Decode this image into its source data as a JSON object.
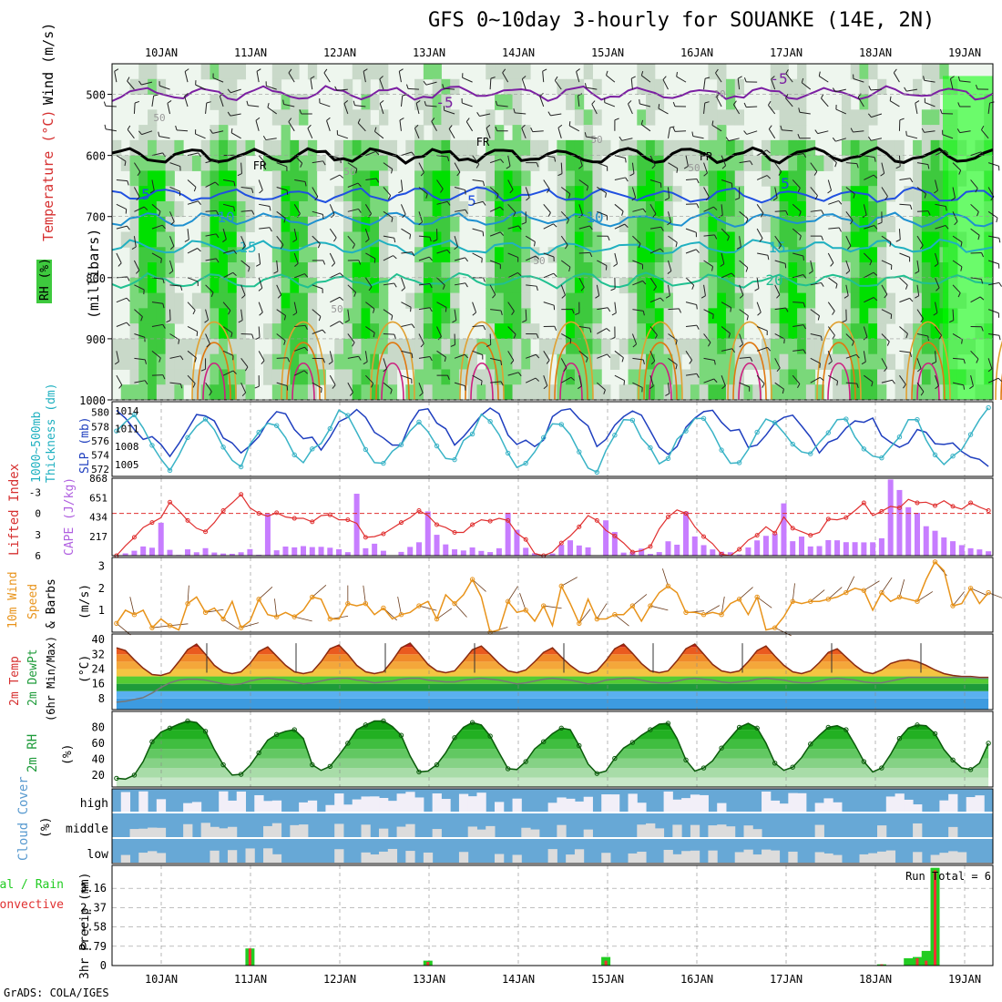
{
  "title": "GFS 0~10day 3-hourly for SOUANKE (14E, 2N)",
  "footer": "GrADS: COLA/IGES",
  "days": [
    "10JAN",
    "11JAN",
    "12JAN",
    "13JAN",
    "14JAN",
    "15JAN",
    "16JAN",
    "17JAN",
    "18JAN",
    "19JAN"
  ],
  "colors": {
    "green_fill": "#3ec93e",
    "bright_green": "#00ff00",
    "temp_line": "#7b1fa2",
    "fr_line": "#000000",
    "thick_line": "#1f3fbf",
    "slp_line": "#39b3c6",
    "cape_bar": "#c77dff",
    "li_line": "#e03030",
    "wind_line": "#e8931a",
    "cloud_blue": "#67a8d6",
    "rain_green": "#22cc22",
    "rain_red": "#ee3333"
  },
  "chart_data": [
    {
      "type": "heatmap",
      "panel": "upper-air cross section",
      "ylabel": "(millibars)",
      "labels": [
        "RH (%)",
        "Temperature (°C)",
        "Wind (m/s)"
      ],
      "y_ticks": [
        500,
        600,
        700,
        800,
        900,
        1000
      ],
      "ylim": [
        1000,
        450
      ],
      "contour_labels": [
        "-5",
        "-5",
        "FR",
        "FR",
        "FR",
        "5",
        "5",
        "5",
        "10",
        "10",
        "15",
        "15",
        "20",
        "50",
        "50",
        "50",
        "50",
        "50",
        "50",
        "10"
      ],
      "isotherms": [
        {
          "label": "-5",
          "level_mb": 498
        },
        {
          "label": "FR",
          "level_mb": 600
        },
        {
          "label": "5",
          "level_mb": 665
        },
        {
          "label": "10",
          "level_mb": 705
        },
        {
          "label": "15",
          "level_mb": 750
        },
        {
          "label": "20",
          "level_mb": 805
        }
      ]
    },
    {
      "type": "line",
      "panel": "thickness and sea level pressure",
      "labels": [
        "1000~500mb",
        "Thickness (dm)",
        "SLP (mb)"
      ],
      "left_ticks": [
        "572",
        "574",
        "576",
        "578",
        "580"
      ],
      "right_ticks": [
        "1005",
        "1008",
        "1011",
        "1014"
      ],
      "thickness_dm": [
        580.3,
        579.2,
        577.6,
        576.2,
        576.6,
        575.5,
        573.8,
        575.6,
        577.6,
        579.7,
        579.5,
        578.8,
        576.4,
        575.7,
        574.3,
        575.3,
        576.6,
        578.7,
        580.1,
        579.8,
        577.6,
        576.3,
        576.5,
        574.7,
        576.5,
        578.7,
        579.3,
        580.4,
        579.3,
        577.2,
        576.4,
        575.4,
        575.4,
        578.4,
        580.3,
        580.5,
        578.5,
        577.7,
        575.4,
        576.6,
        578.1,
        579.6,
        580.6,
        579.8,
        576.8,
        575.5,
        576.1,
        575.2,
        576.1,
        579.4,
        580.3,
        580.5,
        579.1,
        578.1,
        575.2,
        576.2,
        578.2,
        579.4,
        580.2,
        579.6,
        577.4,
        575.1,
        574.1,
        575.2,
        577.9,
        579.2,
        580.1,
        580.3,
        578.6,
        577.4,
        577.6,
        575.1,
        575.4,
        576.8,
        578.5,
        579.3,
        579.6,
        578.1,
        576.5,
        574.3,
        575.8,
        576.3,
        577.8,
        578.8,
        578.6,
        579.2,
        576.7,
        575.8,
        575.1,
        575.7,
        577.6,
        577.2,
        575.6,
        575.5,
        575.7,
        574.5,
        573.7,
        573.4,
        572.4
      ],
      "slp_mb": [
        1010.6,
        1012.1,
        1013.3,
        1011.1,
        1008.2,
        1005.9,
        1004.0,
        1006.5,
        1009.5,
        1011.4,
        1012.6,
        1010.8,
        1007.9,
        1005.7,
        1004.6,
        1008.4,
        1010.4,
        1011.9,
        1011.5,
        1009.5,
        1006.6,
        1005.3,
        1007.6,
        1008.5,
        1011.0,
        1014.1,
        1013.2,
        1010.4,
        1007.5,
        1005.3,
        1005.2,
        1007.2,
        1008.3,
        1010.6,
        1012.1,
        1010.5,
        1008.1,
        1006.0,
        1005.8,
        1009.0,
        1010.1,
        1013.4,
        1012.2,
        1010.0,
        1006.9,
        1004.5,
        1005.2,
        1007.1,
        1009.5,
        1011.8,
        1011.7,
        1010.0,
        1007.1,
        1004.4,
        1003.7,
        1007.3,
        1009.9,
        1012.5,
        1012.4,
        1009.4,
        1007.8,
        1005.1,
        1006.0,
        1009.2,
        1010.6,
        1012.7,
        1012.7,
        1010.4,
        1007.4,
        1005.2,
        1005.3,
        1007.5,
        1010.4,
        1012.6,
        1012.0,
        1010.3,
        1008.4,
        1007.1,
        1006.8,
        1008.7,
        1010.3,
        1012.5,
        1012.6,
        1009.6,
        1007.6,
        1006.4,
        1006.1,
        1007.9,
        1009.6,
        1012.5,
        1012.5,
        1009.1,
        1006.6,
        1005.0,
        1006.4,
        1007.5,
        1010.0,
        1012.5,
        1014.5
      ]
    },
    {
      "type": "bar",
      "panel": "CAPE and lifted index",
      "labels": [
        "Lifted Index",
        "CAPE (J/kg)"
      ],
      "left_ticks": [
        "-3",
        "0",
        "3",
        "6"
      ],
      "right_ticks": [
        "217",
        "434",
        "651",
        "868"
      ],
      "cape_jkg": [
        0,
        26,
        55,
        103,
        89,
        369,
        65,
        8,
        71,
        38,
        84,
        35,
        24,
        21,
        38,
        73,
        10,
        470,
        60,
        102,
        93,
        107,
        96,
        99,
        89,
        72,
        39,
        694,
        83,
        134,
        55,
        3,
        42,
        98,
        150,
        496,
        234,
        126,
        71,
        58,
        92,
        53,
        40,
        83,
        481,
        289,
        88,
        27,
        0,
        24,
        121,
        172,
        114,
        93,
        5,
        396,
        265,
        34,
        43,
        79,
        19,
        40,
        161,
        123,
        494,
        215,
        118,
        70,
        44,
        38,
        13,
        92,
        171,
        222,
        246,
        586,
        162,
        214,
        103,
        107,
        174,
        172,
        151,
        151,
        149,
        150,
        195,
        854,
        736,
        543,
        480,
        330,
        279,
        204,
        162,
        118,
        83,
        70,
        49
      ],
      "lifted_index": [
        6.0,
        4.6,
        3.4,
        2.0,
        1.3,
        0.6,
        -1.6,
        -0.4,
        1.0,
        2.1,
        2.6,
        1.3,
        -0.4,
        -1.5,
        -2.7,
        -0.8,
        0.0,
        0.4,
        -0.1,
        0.5,
        0.7,
        0.7,
        1.2,
        0.3,
        0.2,
        0.9,
        0.9,
        1.4,
        3.4,
        3.3,
        2.9,
        2.1,
        1.3,
        0.6,
        -0.4,
        0.3,
        1.6,
        2.0,
        2.7,
        2.7,
        1.6,
        0.9,
        1.1,
        0.7,
        1.0,
        2.8,
        3.7,
        5.7,
        6.0,
        5.5,
        4.2,
        3.2,
        1.9,
        0.3,
        1.0,
        2.4,
        3.2,
        4.2,
        5.5,
        5.3,
        4.7,
        2.2,
        0.5,
        -0.5,
        0.0,
        1.9,
        3.3,
        4.3,
        5.8,
        6.0,
        5.1,
        3.8,
        3.1,
        1.9,
        2.8,
        0.5,
        2.1,
        2.6,
        3.1,
        2.7,
        0.8,
        0.9,
        0.6,
        -0.4,
        -1.5,
        0.3,
        -0.3,
        -1.0,
        -0.8,
        -2.0,
        -1.5,
        -1.6,
        -1.1,
        -1.8,
        -1.0,
        -0.6,
        -1.5,
        -0.9,
        -0.4
      ]
    },
    {
      "type": "line",
      "panel": "10m wind",
      "labels": [
        "10m Wind",
        "Speed",
        "& Barbs",
        "(m/s)"
      ],
      "left_ticks": [
        "1",
        "2",
        "3"
      ],
      "speed_ms": [
        0.4,
        1.0,
        0.8,
        1.0,
        0.2,
        0.6,
        0.3,
        0.1,
        1.3,
        1.6,
        0.9,
        1.1,
        0.6,
        1.4,
        0.2,
        0.5,
        1.5,
        0.8,
        0.7,
        0.9,
        0.7,
        1.0,
        1.6,
        1.5,
        0.6,
        0.6,
        1.3,
        1.2,
        1.3,
        0.8,
        1.1,
        0.6,
        0.8,
        0.9,
        1.2,
        1.4,
        0.6,
        1.7,
        1.3,
        1.7,
        2.4,
        1.6,
        0.0,
        0.1,
        1.4,
        0.9,
        1.0,
        0.5,
        1.2,
        0.3,
        2.1,
        1.3,
        0.4,
        1.5,
        0.6,
        0.6,
        0.8,
        0.8,
        1.2,
        0.5,
        1.2,
        1.8,
        2.1,
        1.8,
        0.9,
        0.9,
        0.8,
        0.9,
        0.8,
        1.3,
        1.5,
        0.8,
        1.6,
        0.1,
        0.2,
        0.7,
        1.4,
        1.3,
        1.4,
        1.4,
        1.5,
        1.6,
        1.8,
        2.0,
        1.9,
        1.0,
        1.8,
        1.4,
        1.6,
        1.5,
        1.4,
        2.4,
        3.2,
        2.8,
        1.2,
        1.3,
        2.0,
        1.3,
        1.8
      ]
    },
    {
      "type": "area",
      "panel": "2m temperature and dew point",
      "labels": [
        "2m Temp",
        "2m DewPt",
        "(6hr Min/Max)",
        "(°C)"
      ],
      "left_ticks": [
        "8",
        "16",
        "24",
        "32",
        "40"
      ],
      "temp_c": [
        35.5,
        34.0,
        29.0,
        24.5,
        21.0,
        20.5,
        22.0,
        28.0,
        34.5,
        37.5,
        32.0,
        26.0,
        22.5,
        21.5,
        22.5,
        27.0,
        33.5,
        36.0,
        31.0,
        26.0,
        22.5,
        21.5,
        22.5,
        28.0,
        35.0,
        37.0,
        32.0,
        26.0,
        22.5,
        21.5,
        22.5,
        28.5,
        35.5,
        38.0,
        32.5,
        26.5,
        23.0,
        22.0,
        23.0,
        28.5,
        34.5,
        36.5,
        32.0,
        27.0,
        23.0,
        22.0,
        23.5,
        28.0,
        33.0,
        35.5,
        30.5,
        26.0,
        22.5,
        21.5,
        23.0,
        28.5,
        35.0,
        37.5,
        32.5,
        27.0,
        23.0,
        22.0,
        23.0,
        28.5,
        35.0,
        37.5,
        32.0,
        26.5,
        23.0,
        22.0,
        23.0,
        28.0,
        34.0,
        36.5,
        31.0,
        26.0,
        22.5,
        21.5,
        23.0,
        27.5,
        33.0,
        35.0,
        30.5,
        26.0,
        22.5,
        21.5,
        23.5,
        27.0,
        28.5,
        29.0,
        28.0,
        26.0,
        23.5,
        21.5,
        20.5,
        20.0,
        20.0,
        19.5,
        19.5
      ],
      "dewpt_c": [
        6.0,
        6.5,
        7.5,
        8.5,
        11.0,
        14.0,
        16.5,
        18.0,
        18.5,
        18.5,
        18.0,
        17.0,
        16.0,
        15.5,
        16.0,
        17.5,
        18.5,
        19.0,
        18.5,
        18.0,
        17.0,
        16.0,
        16.5,
        17.5,
        18.5,
        19.0,
        19.0,
        18.0,
        17.5,
        16.5,
        17.0,
        17.5,
        18.5,
        19.0,
        19.0,
        18.0,
        17.5,
        17.0,
        17.0,
        18.0,
        18.5,
        19.0,
        18.5,
        18.0,
        17.0,
        16.0,
        16.5,
        17.5,
        18.5,
        19.0,
        18.5,
        18.0,
        17.0,
        16.0,
        16.5,
        18.0,
        18.5,
        19.0,
        19.0,
        18.0,
        17.0,
        16.5,
        16.5,
        17.5,
        18.5,
        19.0,
        18.5,
        18.0,
        17.0,
        16.5,
        17.0,
        17.5,
        18.5,
        19.0,
        18.5,
        18.0,
        17.0,
        16.5,
        16.5,
        17.5,
        18.5,
        19.0,
        18.5,
        18.0,
        17.0,
        16.5,
        16.5,
        17.5,
        18.5,
        19.5,
        19.5,
        19.5,
        19.5,
        19.5,
        19.5,
        19.5,
        19.5,
        19.0,
        19.0
      ]
    },
    {
      "type": "area",
      "panel": "2m relative humidity",
      "labels": [
        "2m RH",
        "(%)"
      ],
      "left_ticks": [
        "20",
        "40",
        "60",
        "80"
      ],
      "rh_pct": [
        16,
        15,
        20,
        37,
        62,
        74,
        79,
        84,
        88,
        86,
        75,
        52,
        33,
        20,
        21,
        32,
        48,
        64,
        71,
        75,
        77,
        66,
        33,
        26,
        31,
        45,
        60,
        77,
        83,
        88,
        88,
        81,
        70,
        44,
        24,
        25,
        33,
        48,
        67,
        80,
        86,
        83,
        69,
        48,
        28,
        27,
        37,
        53,
        62,
        72,
        79,
        77,
        57,
        34,
        22,
        25,
        41,
        54,
        61,
        70,
        77,
        84,
        85,
        66,
        39,
        25,
        29,
        38,
        54,
        67,
        80,
        85,
        79,
        60,
        35,
        26,
        30,
        42,
        59,
        70,
        80,
        82,
        77,
        58,
        37,
        24,
        29,
        46,
        66,
        79,
        83,
        82,
        72,
        52,
        39,
        29,
        27,
        35,
        60
      ]
    },
    {
      "type": "table",
      "panel": "cloud cover",
      "labels": [
        "Cloud Cover",
        "(%)"
      ],
      "rows": [
        "high",
        "middle",
        "low"
      ]
    },
    {
      "type": "bar",
      "panel": "3hr precipitation",
      "labels": [
        "Total / Rain",
        "Convective",
        "3hr Precip (mm)"
      ],
      "left_ticks": [
        "0",
        "0.79",
        "1.58",
        "2.37",
        "3.16"
      ],
      "annotation": "Run Total = 6",
      "total_mm": [
        0,
        0,
        0,
        0,
        0,
        0,
        0,
        0,
        0,
        0,
        0,
        0,
        0,
        0,
        0,
        0.7,
        0,
        0,
        0,
        0,
        0,
        0,
        0,
        0,
        0,
        0,
        0,
        0,
        0,
        0,
        0,
        0,
        0,
        0,
        0,
        0.2,
        0,
        0,
        0,
        0,
        0,
        0,
        0,
        0,
        0,
        0,
        0,
        0,
        0,
        0,
        0,
        0,
        0,
        0,
        0,
        0.35,
        0,
        0,
        0,
        0,
        0,
        0,
        0,
        0,
        0,
        0,
        0,
        0,
        0,
        0,
        0,
        0,
        0,
        0,
        0,
        0,
        0,
        0,
        0,
        0,
        0,
        0,
        0,
        0,
        0,
        0,
        0.05,
        0,
        0,
        0.3,
        0.35,
        0.6,
        4.0,
        0,
        0,
        0,
        0,
        0,
        0
      ],
      "convective_mm": [
        0,
        0,
        0,
        0,
        0,
        0,
        0,
        0,
        0,
        0,
        0,
        0,
        0,
        0,
        0,
        0.7,
        0,
        0,
        0,
        0,
        0,
        0,
        0,
        0,
        0,
        0,
        0,
        0,
        0,
        0,
        0,
        0,
        0,
        0,
        0,
        0.15,
        0,
        0,
        0,
        0,
        0,
        0,
        0,
        0,
        0,
        0,
        0,
        0,
        0,
        0,
        0,
        0,
        0,
        0,
        0,
        0.2,
        0,
        0,
        0,
        0,
        0,
        0,
        0,
        0,
        0,
        0,
        0,
        0,
        0,
        0,
        0,
        0,
        0,
        0,
        0,
        0,
        0,
        0,
        0,
        0,
        0,
        0,
        0,
        0,
        0,
        0,
        0.05,
        0,
        0,
        0,
        0.3,
        0.2,
        3.9,
        0,
        0,
        0,
        0,
        0,
        0
      ]
    }
  ]
}
